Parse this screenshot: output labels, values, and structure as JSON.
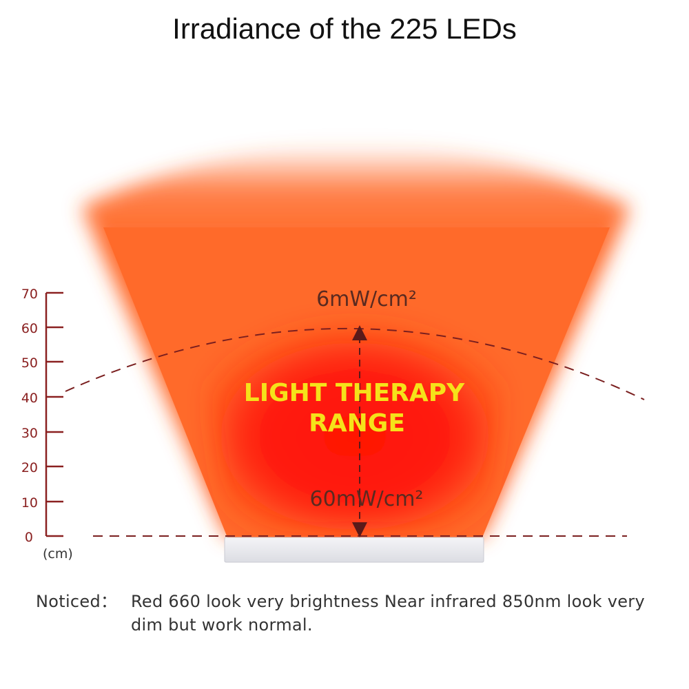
{
  "title": "Irradiance of the 225 LEDs",
  "scale": {
    "unit": "(cm)",
    "ticks": [
      "0",
      "10",
      "20",
      "30",
      "40",
      "50",
      "60",
      "70"
    ],
    "color": "#8a2020"
  },
  "irradiance": {
    "far_label": "6mW/cm²",
    "near_label": "60mW/cm²"
  },
  "range": {
    "line1": "LIGHT THERAPY",
    "line2": "RANGE",
    "color": "#f5e21a"
  },
  "colors": {
    "beam_outer": "#ff6a2a",
    "beam_inner": "#ff1a0a",
    "dashed": "#7a1f1f"
  },
  "note": {
    "prefix": "Noticed：",
    "text": "Red 660 look very brightness Near infrared 850nm look very dim but work normal."
  }
}
